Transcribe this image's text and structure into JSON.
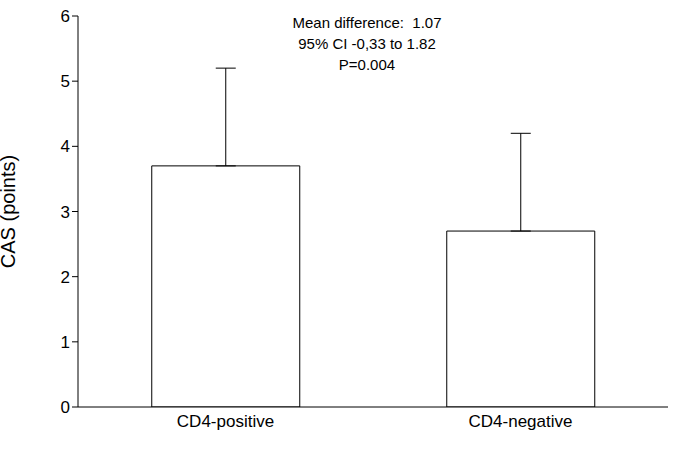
{
  "chart_data": {
    "type": "bar",
    "categories": [
      "CD4-positive",
      "CD4-negative"
    ],
    "values": [
      3.7,
      2.7
    ],
    "errors": [
      1.5,
      1.5
    ],
    "color": "#ffffff",
    "y_label": "CAS (points)",
    "ylim": [
      0,
      6
    ],
    "yticks": [
      0,
      1,
      2,
      3,
      4,
      5,
      6
    ],
    "grid": false,
    "annotations": [
      "Mean difference:  1.07",
      "95% CI -0,33 to 1.82",
      "P=0.004"
    ]
  }
}
